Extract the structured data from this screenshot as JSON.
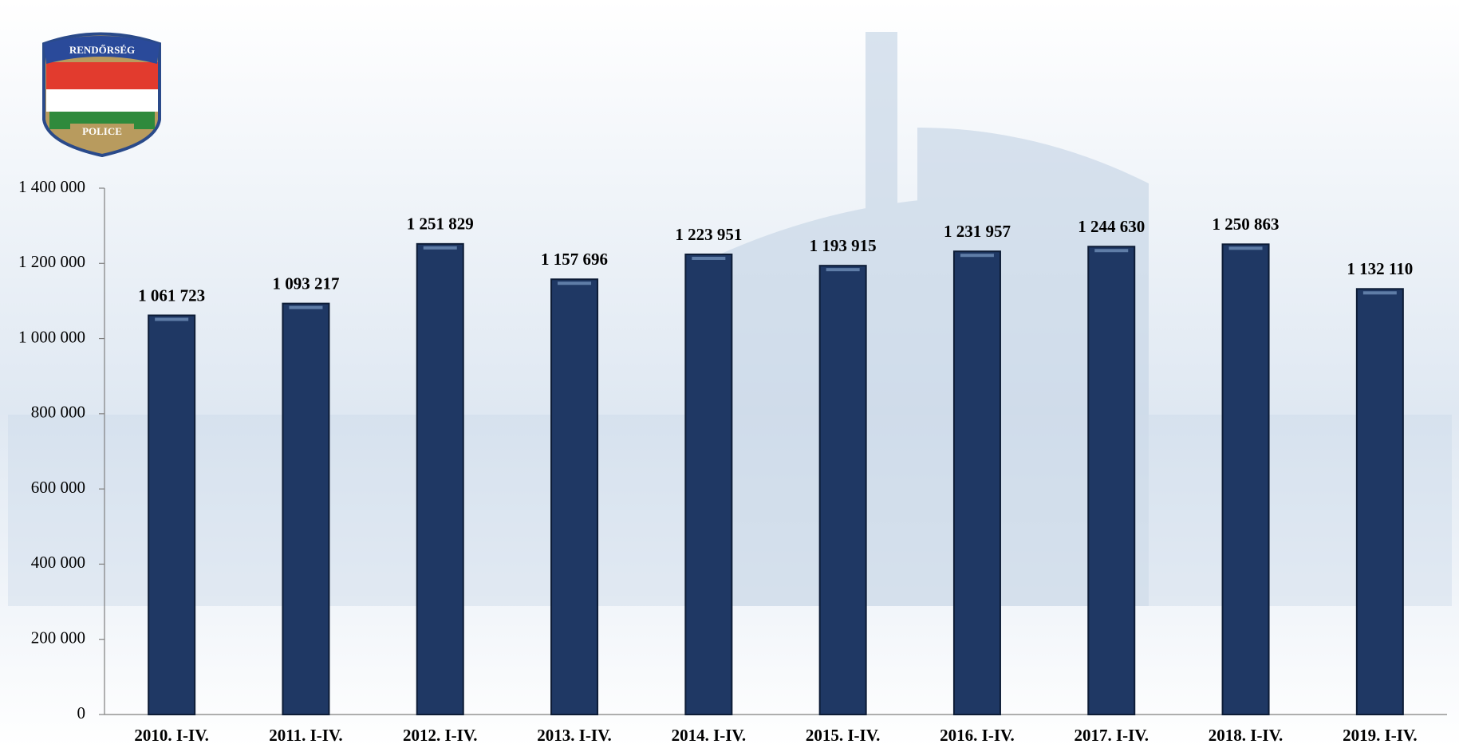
{
  "logo": {
    "top": "RENDŐRSÉG",
    "bottom": "POLICE"
  },
  "chart_data": {
    "type": "bar",
    "categories": [
      "2010. I-IV.",
      "2011. I-IV.",
      "2012. I-IV.",
      "2013. I-IV.",
      "2014. I-IV.",
      "2015. I-IV.",
      "2016. I-IV.",
      "2017. I-IV.",
      "2018. I-IV.",
      "2019. I-IV."
    ],
    "values": [
      1061723,
      1093217,
      1251829,
      1157696,
      1223951,
      1193915,
      1231957,
      1244630,
      1250863,
      1132110
    ],
    "value_labels": [
      "1 061 723",
      "1 093 217",
      "1 251 829",
      "1 157 696",
      "1 223 951",
      "1 193 915",
      "1 231 957",
      "1 244 630",
      "1 250 863",
      "1 132 110"
    ],
    "color": "#1f3864",
    "ylim": [
      0,
      1400000
    ],
    "yticks": [
      0,
      {
        "value": 200000,
        "label": "200 000"
      },
      {
        "value": 400000,
        "label": "400 000"
      },
      {
        "value": 600000,
        "label": "600 000"
      },
      {
        "value": 800000,
        "label": "800 000"
      },
      {
        "value": 1000000,
        "label": "1 000 000"
      },
      {
        "value": 1200000,
        "label": "1 200 000"
      },
      {
        "value": 1400000,
        "label": "1 400 000"
      }
    ],
    "grid": false
  }
}
